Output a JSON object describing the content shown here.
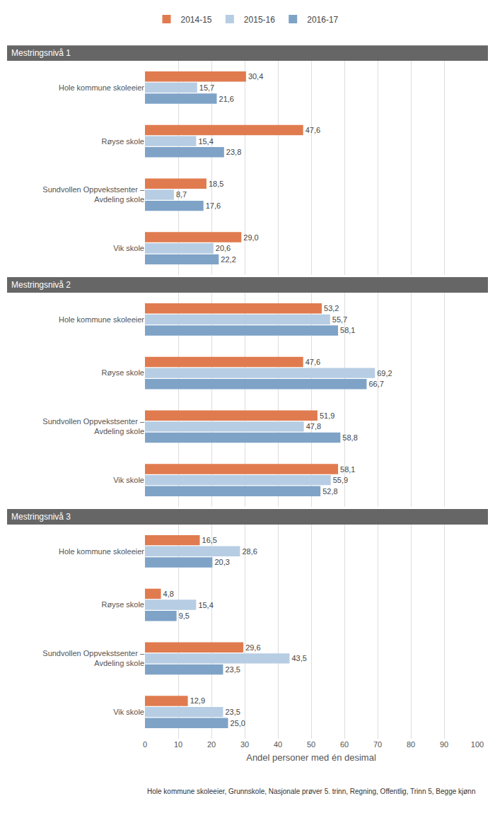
{
  "chart_data": [
    {
      "type": "bar",
      "orientation": "horizontal",
      "title": "Mestringsnivå 1",
      "categories": [
        "Hole kommune skoleeier",
        "Røyse skole",
        "Sundvollen Oppvekstsenter – Avdeling skole",
        "Vik skole"
      ],
      "series": [
        {
          "name": "2014-15",
          "color": "#e07b4f",
          "values": [
            30.4,
            47.6,
            18.5,
            29.0
          ],
          "value_labels": [
            "30,4",
            "47,6",
            "18,5",
            "29,0"
          ]
        },
        {
          "name": "2015-16",
          "color": "#b7cde3",
          "values": [
            15.7,
            15.4,
            8.7,
            20.6
          ],
          "value_labels": [
            "15,7",
            "15,4",
            "8,7",
            "20,6"
          ]
        },
        {
          "name": "2016-17",
          "color": "#7fa3c7",
          "values": [
            21.6,
            23.8,
            17.6,
            22.2
          ],
          "value_labels": [
            "21,6",
            "23,8",
            "17,6",
            "22,2"
          ]
        }
      ],
      "xlim": [
        0,
        100
      ],
      "xticks": [
        0,
        10,
        20,
        30,
        40,
        50,
        60,
        70,
        80,
        90,
        100
      ],
      "grid": true,
      "data_labels": true,
      "tick_labels": "y",
      "legend": "top"
    },
    {
      "type": "bar",
      "orientation": "horizontal",
      "title": "Mestringsnivå 2",
      "categories": [
        "Hole kommune skoleeier",
        "Røyse skole",
        "Sundvollen Oppvekstsenter – Avdeling skole",
        "Vik skole"
      ],
      "series": [
        {
          "name": "2014-15",
          "color": "#e07b4f",
          "values": [
            53.2,
            47.6,
            51.9,
            58.1
          ],
          "value_labels": [
            "53,2",
            "47,6",
            "51,9",
            "58,1"
          ]
        },
        {
          "name": "2015-16",
          "color": "#b7cde3",
          "values": [
            55.7,
            69.2,
            47.8,
            55.9
          ],
          "value_labels": [
            "55,7",
            "69,2",
            "47,8",
            "55,9"
          ]
        },
        {
          "name": "2016-17",
          "color": "#7fa3c7",
          "values": [
            58.1,
            66.7,
            58.8,
            52.8
          ],
          "value_labels": [
            "58,1",
            "66,7",
            "58,8",
            "52,8"
          ]
        }
      ],
      "xlim": [
        0,
        100
      ],
      "xticks": [
        0,
        10,
        20,
        30,
        40,
        50,
        60,
        70,
        80,
        90,
        100
      ],
      "grid": true,
      "data_labels": true,
      "tick_labels": "y"
    },
    {
      "type": "bar",
      "orientation": "horizontal",
      "title": "Mestringsnivå 3",
      "categories": [
        "Hole kommune skoleeier",
        "Røyse skole",
        "Sundvollen Oppvekstsenter – Avdeling skole",
        "Vik skole"
      ],
      "series": [
        {
          "name": "2014-15",
          "color": "#e07b4f",
          "values": [
            16.5,
            4.8,
            29.6,
            12.9
          ],
          "value_labels": [
            "16,5",
            "4,8",
            "29,6",
            "12,9"
          ]
        },
        {
          "name": "2015-16",
          "color": "#b7cde3",
          "values": [
            28.6,
            15.4,
            43.5,
            23.5
          ],
          "value_labels": [
            "28,6",
            "15,4",
            "43,5",
            "23,5"
          ]
        },
        {
          "name": "2016-17",
          "color": "#7fa3c7",
          "values": [
            20.3,
            9.5,
            23.5,
            25.0
          ],
          "value_labels": [
            "20,3",
            "9,5",
            "23,5",
            "25,0"
          ]
        }
      ],
      "x_label": "Andel personer med én desimal",
      "xlim": [
        0,
        100
      ],
      "xticks": [
        0,
        10,
        20,
        30,
        40,
        50,
        60,
        70,
        80,
        90,
        100
      ],
      "grid": true,
      "data_labels": true
    },
    {
      "footnote": "Hole kommune skoleeier, Grunnskole, Nasjonale prøver 5. trinn, Regning, Offentlig, Trinn 5, Begge kjønn"
    }
  ]
}
